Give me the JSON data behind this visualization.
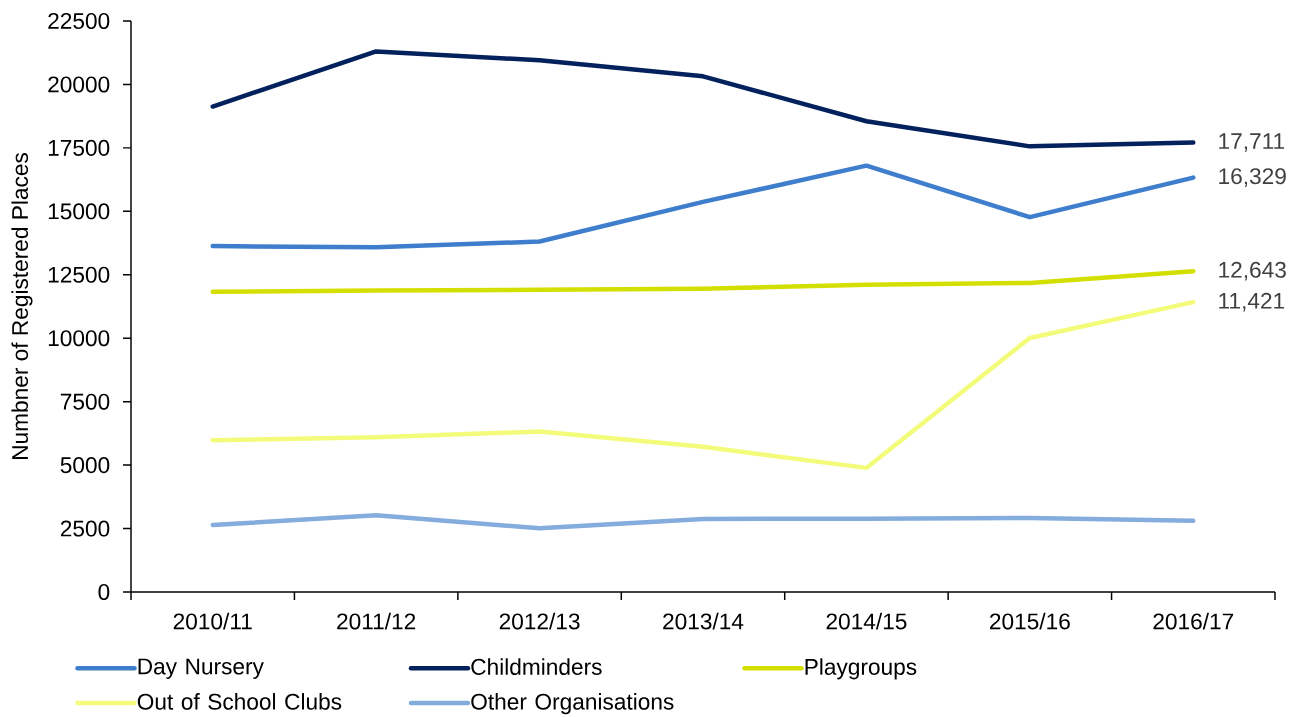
{
  "chart_data": {
    "type": "line",
    "ylabel": "Numbner of Registered Places",
    "categories": [
      "2010/11",
      "2011/12",
      "2012/13",
      "2013/14",
      "2014/15",
      "2015/16",
      "2016/17"
    ],
    "series": [
      {
        "name": "Day Nursery",
        "color": "#3f7ecd",
        "values": [
          13630,
          13580,
          13810,
          15370,
          16800,
          14770,
          16329
        ],
        "value_labels": [
          null,
          null,
          null,
          null,
          null,
          null,
          "16,329"
        ]
      },
      {
        "name": "Childminders",
        "color": "#03215c",
        "values": [
          19130,
          21300,
          20950,
          20320,
          18550,
          17560,
          17711
        ],
        "value_labels": [
          null,
          null,
          null,
          null,
          null,
          null,
          "17,711"
        ]
      },
      {
        "name": "Playgroups",
        "color": "#d3df00",
        "values": [
          11830,
          11880,
          11910,
          11950,
          12110,
          12180,
          12643
        ],
        "value_labels": [
          null,
          null,
          null,
          null,
          null,
          null,
          "12,643"
        ]
      },
      {
        "name": "Out of School Clubs",
        "color": "#f3fb7b",
        "values": [
          5980,
          6100,
          6320,
          5720,
          4890,
          10010,
          11421
        ],
        "value_labels": [
          null,
          null,
          null,
          null,
          null,
          null,
          "11,421"
        ]
      },
      {
        "name": "Other Organisations",
        "color": "#84acdd",
        "values": [
          2640,
          3020,
          2510,
          2880,
          2890,
          2920,
          2810
        ]
      }
    ],
    "ylim": [
      0,
      22500
    ],
    "yticks": [
      0,
      2500,
      5000,
      7500,
      10000,
      12500,
      15000,
      17500,
      20000,
      22500
    ],
    "legend": "bottom",
    "marker": "none",
    "line_style": "solid"
  }
}
